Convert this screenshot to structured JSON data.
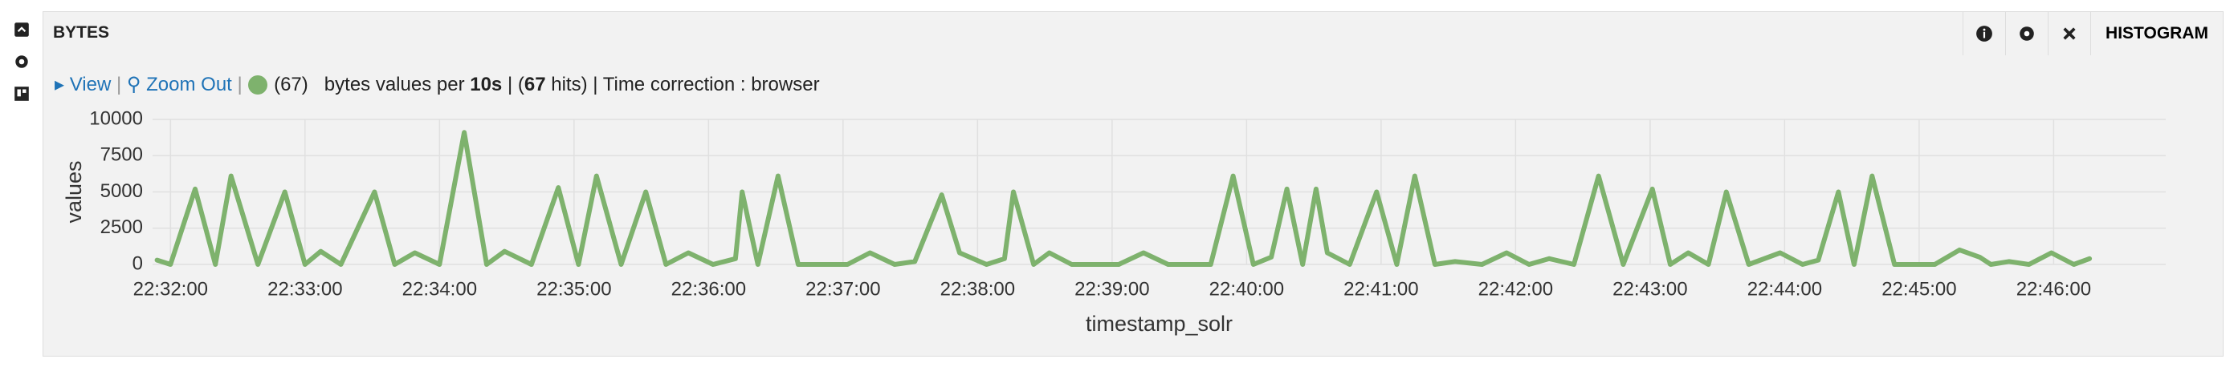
{
  "panel": {
    "title": "BYTES",
    "mode": "HISTOGRAM"
  },
  "legend": {
    "view": "View",
    "zoom_out": "Zoom Out",
    "count": "(67)",
    "text": "bytes values per",
    "interval": "10s",
    "hits_prefix": "| (",
    "hits": "67",
    "hits_suffix": "hits) | Time correction : browser"
  },
  "chart_data": {
    "type": "line",
    "xlabel": "timestamp_solr",
    "ylabel": "values",
    "color": "#7eb26d",
    "grid": true,
    "x": [
      "22:31:54",
      "22:32:00",
      "22:32:11",
      "22:32:20",
      "22:32:27",
      "22:32:39",
      "22:32:51",
      "22:33:00",
      "22:33:07",
      "22:33:16",
      "22:33:31",
      "22:33:40",
      "22:33:49",
      "22:34:00",
      "22:34:11",
      "22:34:21",
      "22:34:29",
      "22:34:41",
      "22:34:53",
      "22:35:02",
      "22:35:10",
      "22:35:21",
      "22:35:32",
      "22:35:41",
      "22:35:51",
      "22:36:02",
      "22:36:12",
      "22:36:15",
      "22:36:22",
      "22:36:31",
      "22:36:40",
      "22:37:02",
      "22:37:12",
      "22:37:23",
      "22:37:32",
      "22:37:44",
      "22:37:52",
      "22:38:04",
      "22:38:12",
      "22:38:16",
      "22:38:25",
      "22:38:32",
      "22:38:42",
      "22:39:03",
      "22:39:14",
      "22:39:25",
      "22:39:44",
      "22:39:54",
      "22:40:03",
      "22:40:11",
      "22:40:18",
      "22:40:25",
      "22:40:31",
      "22:40:36",
      "22:40:46",
      "22:40:58",
      "22:41:07",
      "22:41:15",
      "22:41:24",
      "22:41:33",
      "22:41:45",
      "22:41:56",
      "22:42:06",
      "22:42:15",
      "22:42:26",
      "22:42:37",
      "22:42:48",
      "22:43:01",
      "22:43:09",
      "22:43:17",
      "22:43:26",
      "22:43:34",
      "22:43:44",
      "22:43:58",
      "22:44:08",
      "22:44:15",
      "22:44:24",
      "22:44:31",
      "22:44:39",
      "22:44:49",
      "22:45:07",
      "22:45:18",
      "22:45:27",
      "22:45:32",
      "22:45:40",
      "22:45:49",
      "22:45:59",
      "22:46:09",
      "22:46:16"
    ],
    "values": [
      300,
      0,
      5200,
      0,
      6100,
      0,
      5000,
      0,
      900,
      0,
      5000,
      0,
      800,
      0,
      9100,
      0,
      900,
      0,
      5300,
      0,
      6100,
      0,
      5000,
      0,
      800,
      0,
      400,
      5000,
      0,
      6100,
      0,
      0,
      800,
      0,
      200,
      4800,
      800,
      0,
      400,
      5000,
      0,
      800,
      0,
      0,
      800,
      0,
      0,
      6100,
      0,
      500,
      5200,
      0,
      5200,
      800,
      0,
      5000,
      0,
      6100,
      0,
      200,
      0,
      800,
      0,
      400,
      0,
      6100,
      0,
      5200,
      0,
      800,
      0,
      5000,
      0,
      800,
      0,
      300,
      5000,
      0,
      6100,
      0,
      0,
      1000,
      500,
      0,
      200,
      0,
      800,
      0,
      400
    ],
    "xlim": [
      "22:31:52",
      "22:46:50"
    ],
    "xticks": [
      "22:32:00",
      "22:33:00",
      "22:34:00",
      "22:35:00",
      "22:36:00",
      "22:37:00",
      "22:38:00",
      "22:39:00",
      "22:40:00",
      "22:41:00",
      "22:42:00",
      "22:43:00",
      "22:44:00",
      "22:45:00",
      "22:46:00"
    ],
    "ylim": [
      0,
      10000
    ],
    "yticks": [
      0,
      2500,
      5000,
      7500,
      10000
    ]
  }
}
